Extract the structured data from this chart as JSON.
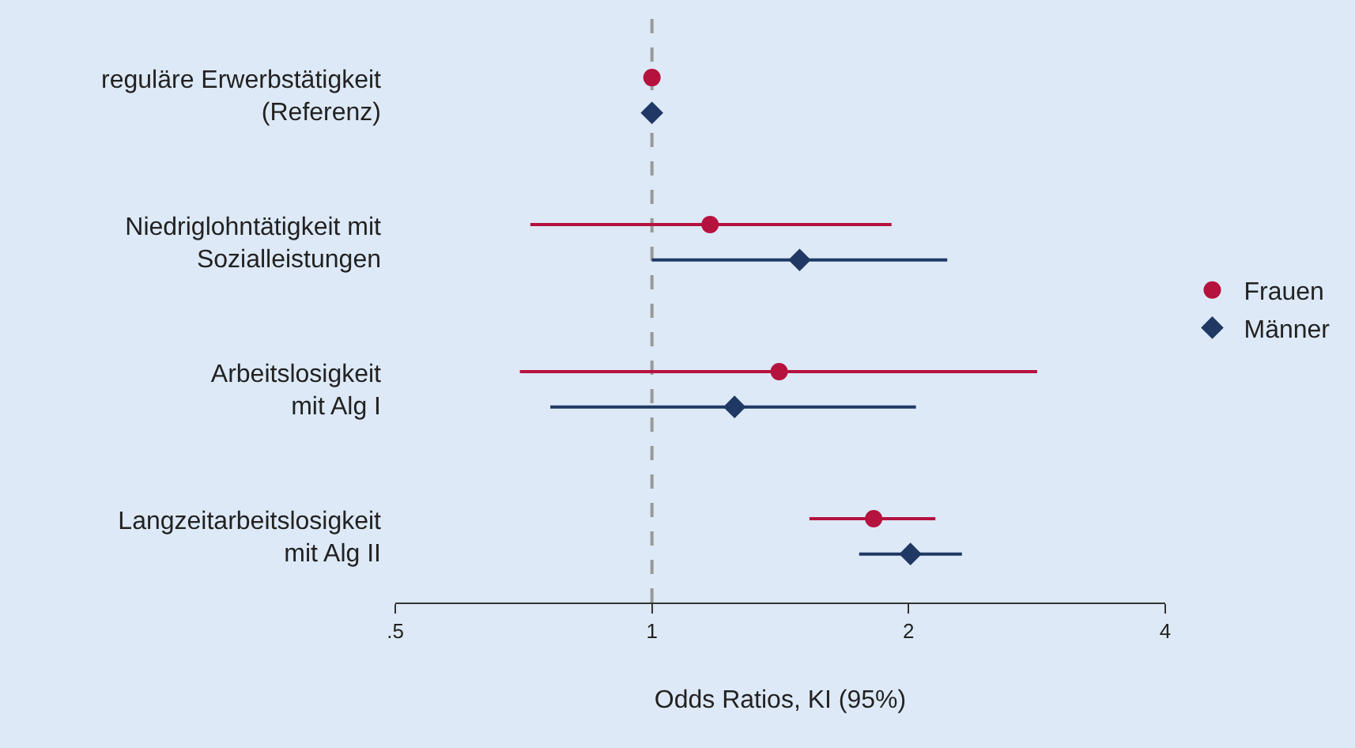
{
  "chart_data": {
    "type": "scatter",
    "orientation": "horizontal",
    "xlabel": "Odds Ratios, KI (95%)",
    "categories": [
      "reguläre Erwerbstätigkeit\n(Referenz)",
      "Niedriglohntätigkeit mit\nSozialleistungen",
      "Arbeitslosigkeit\nmit Alg I",
      "Langzeitarbeitslosigkeit\nmit Alg II"
    ],
    "series": [
      {
        "name": "Frauen",
        "color": "#b5123e",
        "marker": "circle",
        "values": [
          1,
          1.17,
          1.41,
          1.82
        ],
        "errors": [
          null,
          [
            0.72,
            1.91
          ],
          [
            0.7,
            2.83
          ],
          [
            1.53,
            2.15
          ]
        ]
      },
      {
        "name": "Männer",
        "color": "#1f3864",
        "marker": "diamond",
        "values": [
          1,
          1.49,
          1.25,
          2.01
        ],
        "errors": [
          null,
          [
            1.0,
            2.22
          ],
          [
            0.76,
            2.04
          ],
          [
            1.75,
            2.31
          ]
        ]
      }
    ],
    "log": "x",
    "xlim": [
      0.5,
      4
    ],
    "xticks": [
      {
        "value": 0.5,
        "label": ".5"
      },
      1,
      2,
      4
    ],
    "ref_lines": [
      {
        "axis": "x",
        "value": 1,
        "color": "#999999",
        "line_style": "dashed"
      }
    ],
    "grid": false,
    "legend": "right"
  }
}
